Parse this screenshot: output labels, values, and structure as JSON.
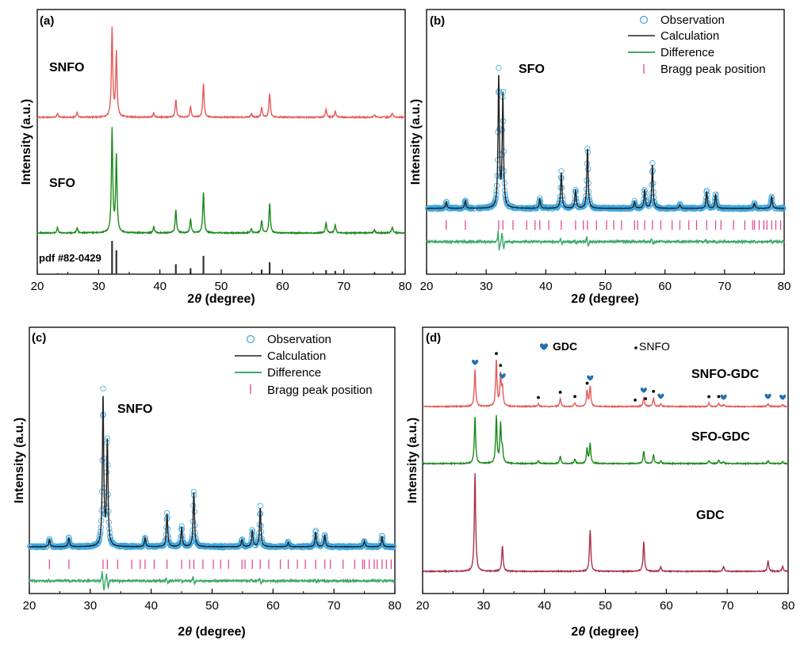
{
  "colors": {
    "snfo": "#e85a5a",
    "sfo": "#1a8a1a",
    "ref": "#333333",
    "obs": "#3aa6e0",
    "calc": "#222222",
    "diff": "#3fa86a",
    "bragg": "#e0408c",
    "gdc_line": "#a8324a",
    "gdc_marker": "#1f6fb0"
  },
  "chart_data": [
    {
      "type": "line",
      "panel_label": "(a)",
      "xlabel_prefix": "2",
      "xlabel_theta": "θ",
      "xlabel_suffix": " (degree)",
      "ylabel": "Intensity (a.u.)",
      "xlim": [
        20,
        80
      ],
      "xticks": [
        20,
        30,
        40,
        50,
        60,
        70,
        80
      ],
      "series": [
        {
          "name": "SNFO",
          "peaks": [
            [
              23.3,
              0.04
            ],
            [
              26.5,
              0.05
            ],
            [
              32.2,
              1.0
            ],
            [
              32.9,
              0.72
            ],
            [
              39.0,
              0.05
            ],
            [
              42.6,
              0.2
            ],
            [
              45.0,
              0.12
            ],
            [
              47.1,
              0.38
            ],
            [
              54.9,
              0.04
            ],
            [
              56.6,
              0.11
            ],
            [
              57.9,
              0.27
            ],
            [
              67.1,
              0.09
            ],
            [
              68.6,
              0.07
            ],
            [
              75.0,
              0.03
            ],
            [
              77.9,
              0.05
            ]
          ]
        },
        {
          "name": "SFO",
          "peaks": [
            [
              23.3,
              0.05
            ],
            [
              26.5,
              0.05
            ],
            [
              32.2,
              1.0
            ],
            [
              32.9,
              0.74
            ],
            [
              39.0,
              0.06
            ],
            [
              42.6,
              0.22
            ],
            [
              45.0,
              0.13
            ],
            [
              47.1,
              0.39
            ],
            [
              54.9,
              0.04
            ],
            [
              56.6,
              0.12
            ],
            [
              57.9,
              0.28
            ],
            [
              67.1,
              0.1
            ],
            [
              68.6,
              0.08
            ],
            [
              75.0,
              0.03
            ],
            [
              77.9,
              0.06
            ]
          ]
        },
        {
          "name": "pdf #82-0429",
          "peaks": [
            [
              23.3,
              0.03
            ],
            [
              32.2,
              1.0
            ],
            [
              32.9,
              0.72
            ],
            [
              42.6,
              0.3
            ],
            [
              45.0,
              0.18
            ],
            [
              47.1,
              0.55
            ],
            [
              56.6,
              0.14
            ],
            [
              57.9,
              0.36
            ],
            [
              67.1,
              0.12
            ],
            [
              68.6,
              0.1
            ],
            [
              75.0,
              0.04
            ],
            [
              77.9,
              0.08
            ]
          ]
        }
      ]
    },
    {
      "type": "line",
      "panel_label": "(b)",
      "sample_label": "SFO",
      "xlabel_prefix": "2",
      "xlabel_theta": "θ",
      "xlabel_suffix": " (degree)",
      "ylabel": "Intensity (a.u.)",
      "xlim": [
        20,
        80
      ],
      "xticks": [
        20,
        30,
        40,
        50,
        60,
        70,
        80
      ],
      "legend": [
        "Observation",
        "Calculation",
        "Difference",
        "Bragg peak position"
      ],
      "peaks": [
        [
          23.3,
          0.05
        ],
        [
          26.5,
          0.06
        ],
        [
          32.1,
          1.0
        ],
        [
          32.8,
          0.85
        ],
        [
          39.0,
          0.07
        ],
        [
          42.6,
          0.27
        ],
        [
          45.0,
          0.14
        ],
        [
          47.0,
          0.45
        ],
        [
          54.9,
          0.05
        ],
        [
          56.6,
          0.14
        ],
        [
          57.9,
          0.33
        ],
        [
          62.5,
          0.03
        ],
        [
          67.0,
          0.13
        ],
        [
          68.5,
          0.11
        ],
        [
          75.0,
          0.04
        ],
        [
          77.9,
          0.09
        ]
      ],
      "bragg_positions": [
        23.3,
        26.5,
        32.1,
        32.8,
        34.5,
        36.8,
        38.2,
        39.0,
        40.5,
        42.6,
        45.0,
        46.3,
        47.0,
        48.5,
        50.2,
        51.4,
        52.7,
        54.9,
        55.4,
        56.6,
        57.9,
        59.3,
        61.2,
        62.5,
        64.0,
        65.3,
        67.0,
        68.5,
        69.4,
        71.5,
        73.4,
        74.7,
        75.0,
        75.8,
        76.6,
        77.1,
        77.9,
        78.6,
        79.4
      ]
    },
    {
      "type": "line",
      "panel_label": "(c)",
      "sample_label": "SNFO",
      "xlabel_prefix": "2",
      "xlabel_theta": "θ",
      "xlabel_suffix": " (degree)",
      "ylabel": "Intensity (a.u.)",
      "xlim": [
        20,
        80
      ],
      "xticks": [
        20,
        30,
        40,
        50,
        60,
        70,
        80
      ],
      "legend": [
        "Observation",
        "Calculation",
        "Difference",
        "Bragg peak position"
      ],
      "peaks": [
        [
          23.3,
          0.05
        ],
        [
          26.5,
          0.06
        ],
        [
          32.1,
          1.0
        ],
        [
          32.8,
          0.69
        ],
        [
          39.0,
          0.06
        ],
        [
          42.6,
          0.22
        ],
        [
          45.0,
          0.13
        ],
        [
          47.0,
          0.36
        ],
        [
          54.9,
          0.05
        ],
        [
          56.6,
          0.11
        ],
        [
          57.9,
          0.26
        ],
        [
          62.5,
          0.03
        ],
        [
          67.0,
          0.1
        ],
        [
          68.5,
          0.08
        ],
        [
          75.0,
          0.04
        ],
        [
          77.9,
          0.07
        ]
      ],
      "bragg_positions": [
        23.3,
        26.5,
        32.1,
        32.8,
        34.5,
        36.8,
        38.2,
        39.0,
        40.5,
        42.6,
        45.0,
        46.3,
        47.0,
        48.5,
        50.2,
        51.4,
        52.7,
        54.9,
        55.4,
        56.6,
        57.9,
        59.3,
        61.2,
        62.5,
        64.0,
        65.3,
        67.0,
        68.5,
        69.4,
        71.5,
        73.4,
        74.7,
        75.0,
        75.8,
        76.6,
        77.1,
        77.9,
        78.6,
        79.4
      ]
    },
    {
      "type": "line",
      "panel_label": "(d)",
      "xlabel_prefix": "2",
      "xlabel_theta": "θ",
      "xlabel_suffix": " (degree)",
      "ylabel": "Intensity (a.u.)",
      "xlim": [
        20,
        80
      ],
      "xticks": [
        20,
        30,
        40,
        50,
        60,
        70,
        80
      ],
      "legend": [
        "GDC",
        "SNFO"
      ],
      "series": [
        {
          "name": "SNFO-GDC",
          "peaks": [
            [
              28.6,
              0.42
            ],
            [
              32.1,
              0.52
            ],
            [
              32.8,
              0.35
            ],
            [
              33.1,
              0.2
            ],
            [
              39.0,
              0.03
            ],
            [
              42.6,
              0.09
            ],
            [
              45.0,
              0.04
            ],
            [
              47.0,
              0.18
            ],
            [
              47.5,
              0.23
            ],
            [
              56.3,
              0.1
            ],
            [
              57.9,
              0.1
            ],
            [
              59.1,
              0.03
            ],
            [
              67.0,
              0.04
            ],
            [
              68.6,
              0.04
            ],
            [
              69.4,
              0.02
            ],
            [
              76.7,
              0.03
            ],
            [
              79.1,
              0.02
            ]
          ]
        },
        {
          "name": "SFO-GDC",
          "peaks": [
            [
              28.6,
              0.62
            ],
            [
              32.1,
              0.62
            ],
            [
              32.8,
              0.52
            ],
            [
              33.1,
              0.16
            ],
            [
              39.0,
              0.04
            ],
            [
              42.6,
              0.1
            ],
            [
              45.0,
              0.06
            ],
            [
              47.0,
              0.2
            ],
            [
              47.5,
              0.26
            ],
            [
              56.3,
              0.17
            ],
            [
              57.9,
              0.12
            ],
            [
              59.1,
              0.03
            ],
            [
              67.0,
              0.04
            ],
            [
              68.6,
              0.05
            ],
            [
              69.4,
              0.02
            ],
            [
              76.7,
              0.04
            ],
            [
              79.1,
              0.02
            ]
          ]
        },
        {
          "name": "GDC",
          "peaks": [
            [
              28.6,
              1.0
            ],
            [
              33.1,
              0.26
            ],
            [
              47.5,
              0.42
            ],
            [
              56.3,
              0.3
            ],
            [
              59.1,
              0.05
            ],
            [
              69.4,
              0.05
            ],
            [
              76.7,
              0.11
            ],
            [
              79.1,
              0.05
            ]
          ]
        }
      ],
      "gdc_markers": [
        [
          28.6,
          "SNFO-GDC"
        ],
        [
          33.1,
          "SNFO-GDC"
        ],
        [
          47.5,
          "SNFO-GDC"
        ],
        [
          56.3,
          "SNFO-GDC"
        ],
        [
          59.1,
          "SNFO-GDC"
        ],
        [
          69.4,
          "SNFO-GDC"
        ],
        [
          76.7,
          "SNFO-GDC"
        ],
        [
          79.1,
          "SNFO-GDC"
        ]
      ],
      "snfo_markers": [
        32.1,
        32.8,
        39.0,
        42.6,
        45.0,
        47.0,
        54.9,
        56.6,
        57.9,
        67.0,
        68.6
      ]
    }
  ]
}
